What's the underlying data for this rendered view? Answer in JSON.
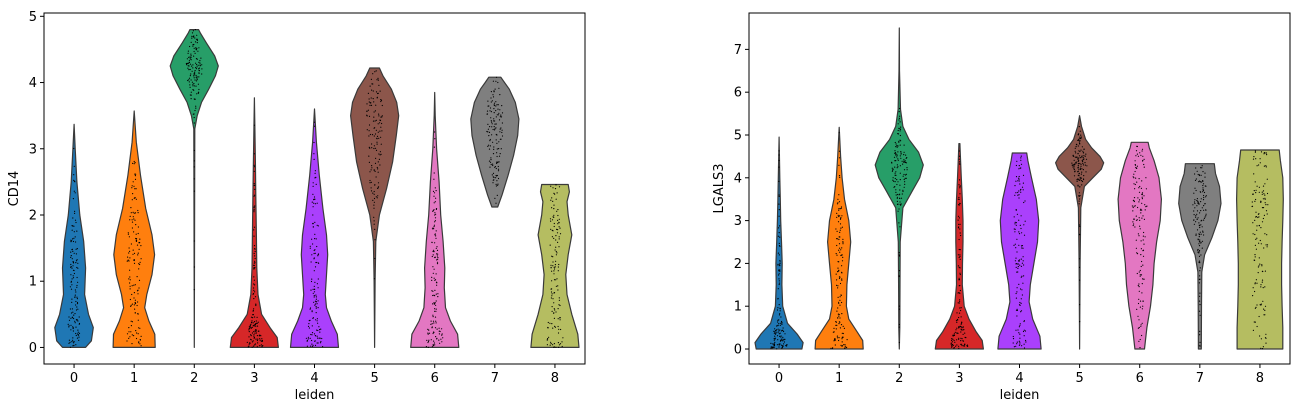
{
  "chart_data": [
    {
      "type": "violin",
      "xlabel": "leiden",
      "ylabel": "CD14",
      "ylim": [
        -0.25,
        5.05
      ],
      "yticks": [
        0,
        1,
        2,
        3,
        4,
        5
      ],
      "categories": [
        "0",
        "1",
        "2",
        "3",
        "4",
        "5",
        "6",
        "7",
        "8"
      ],
      "colors": [
        "#1f77b4",
        "#ff7f0e",
        "#279e68",
        "#d62728",
        "#aa40fc",
        "#8c564b",
        "#e377c2",
        "#7f7f7f",
        "#b5bd61"
      ],
      "violins": [
        {
          "min": 0.0,
          "max": 3.37,
          "max_width": 0.32,
          "profile": [
            [
              0.0,
              0.6
            ],
            [
              0.1,
              0.9
            ],
            [
              0.3,
              1.0
            ],
            [
              0.5,
              0.75
            ],
            [
              0.8,
              0.55
            ],
            [
              1.2,
              0.6
            ],
            [
              1.6,
              0.5
            ],
            [
              2.0,
              0.3
            ],
            [
              2.5,
              0.15
            ],
            [
              3.0,
              0.06
            ],
            [
              3.37,
              0.0
            ]
          ]
        },
        {
          "min": 0.0,
          "max": 3.57,
          "max_width": 0.35,
          "profile": [
            [
              0.0,
              1.0
            ],
            [
              0.2,
              0.98
            ],
            [
              0.4,
              0.7
            ],
            [
              0.6,
              0.5
            ],
            [
              0.8,
              0.6
            ],
            [
              1.1,
              0.85
            ],
            [
              1.4,
              0.97
            ],
            [
              1.7,
              0.85
            ],
            [
              2.1,
              0.55
            ],
            [
              2.6,
              0.3
            ],
            [
              3.1,
              0.1
            ],
            [
              3.57,
              0.0
            ]
          ]
        },
        {
          "min": 0.0,
          "max": 4.8,
          "max_width": 0.4,
          "profile": [
            [
              0.0,
              0.0
            ],
            [
              3.3,
              0.02
            ],
            [
              3.5,
              0.12
            ],
            [
              3.7,
              0.3
            ],
            [
              3.9,
              0.6
            ],
            [
              4.1,
              0.88
            ],
            [
              4.25,
              1.0
            ],
            [
              4.4,
              0.85
            ],
            [
              4.6,
              0.5
            ],
            [
              4.75,
              0.25
            ],
            [
              4.8,
              0.18
            ]
          ]
        },
        {
          "min": 0.0,
          "max": 3.77,
          "max_width": 0.4,
          "profile": [
            [
              0.0,
              1.0
            ],
            [
              0.15,
              0.95
            ],
            [
              0.3,
              0.65
            ],
            [
              0.5,
              0.3
            ],
            [
              0.8,
              0.15
            ],
            [
              1.2,
              0.1
            ],
            [
              1.8,
              0.08
            ],
            [
              2.3,
              0.06
            ],
            [
              2.8,
              0.04
            ],
            [
              3.3,
              0.02
            ],
            [
              3.77,
              0.0
            ]
          ]
        },
        {
          "min": 0.0,
          "max": 3.6,
          "max_width": 0.4,
          "profile": [
            [
              0.0,
              1.0
            ],
            [
              0.2,
              0.95
            ],
            [
              0.4,
              0.7
            ],
            [
              0.6,
              0.5
            ],
            [
              0.8,
              0.45
            ],
            [
              1.1,
              0.5
            ],
            [
              1.4,
              0.55
            ],
            [
              1.7,
              0.5
            ],
            [
              2.1,
              0.35
            ],
            [
              2.6,
              0.2
            ],
            [
              3.1,
              0.08
            ],
            [
              3.6,
              0.0
            ]
          ]
        },
        {
          "min": 0.0,
          "max": 4.22,
          "max_width": 0.4,
          "profile": [
            [
              0.0,
              0.0
            ],
            [
              1.0,
              0.02
            ],
            [
              1.6,
              0.05
            ],
            [
              2.0,
              0.2
            ],
            [
              2.4,
              0.5
            ],
            [
              2.8,
              0.75
            ],
            [
              3.2,
              0.9
            ],
            [
              3.5,
              1.0
            ],
            [
              3.7,
              0.92
            ],
            [
              3.9,
              0.7
            ],
            [
              4.1,
              0.35
            ],
            [
              4.22,
              0.2
            ]
          ]
        },
        {
          "min": 0.0,
          "max": 3.85,
          "max_width": 0.4,
          "profile": [
            [
              0.0,
              1.0
            ],
            [
              0.2,
              0.95
            ],
            [
              0.4,
              0.65
            ],
            [
              0.6,
              0.45
            ],
            [
              0.9,
              0.4
            ],
            [
              1.2,
              0.42
            ],
            [
              1.6,
              0.35
            ],
            [
              2.0,
              0.25
            ],
            [
              2.5,
              0.18
            ],
            [
              3.0,
              0.08
            ],
            [
              3.5,
              0.02
            ],
            [
              3.85,
              0.0
            ]
          ]
        },
        {
          "min": 2.12,
          "max": 4.08,
          "max_width": 0.4,
          "profile": [
            [
              2.12,
              0.12
            ],
            [
              2.3,
              0.3
            ],
            [
              2.6,
              0.55
            ],
            [
              2.9,
              0.78
            ],
            [
              3.2,
              0.95
            ],
            [
              3.45,
              1.0
            ],
            [
              3.7,
              0.85
            ],
            [
              3.9,
              0.6
            ],
            [
              4.0,
              0.4
            ],
            [
              4.08,
              0.25
            ]
          ]
        },
        {
          "min": 0.0,
          "max": 2.46,
          "max_width": 0.4,
          "profile": [
            [
              0.0,
              1.0
            ],
            [
              0.2,
              0.95
            ],
            [
              0.5,
              0.7
            ],
            [
              0.8,
              0.5
            ],
            [
              1.1,
              0.45
            ],
            [
              1.4,
              0.55
            ],
            [
              1.7,
              0.7
            ],
            [
              2.0,
              0.55
            ],
            [
              2.2,
              0.5
            ],
            [
              2.35,
              0.6
            ],
            [
              2.46,
              0.55
            ]
          ]
        }
      ]
    },
    {
      "type": "violin",
      "xlabel": "leiden",
      "ylabel": "LGALS3",
      "ylim": [
        -0.35,
        7.85
      ],
      "yticks": [
        0,
        1,
        2,
        3,
        4,
        5,
        6,
        7
      ],
      "categories": [
        "0",
        "1",
        "2",
        "3",
        "4",
        "5",
        "6",
        "7",
        "8"
      ],
      "colors": [
        "#1f77b4",
        "#ff7f0e",
        "#279e68",
        "#d62728",
        "#aa40fc",
        "#8c564b",
        "#e377c2",
        "#7f7f7f",
        "#b5bd61"
      ],
      "violins": [
        {
          "min": 0.0,
          "max": 4.95,
          "max_width": 0.4,
          "profile": [
            [
              0.0,
              0.95
            ],
            [
              0.15,
              1.0
            ],
            [
              0.35,
              0.75
            ],
            [
              0.6,
              0.35
            ],
            [
              1.0,
              0.15
            ],
            [
              1.5,
              0.12
            ],
            [
              2.0,
              0.13
            ],
            [
              2.5,
              0.1
            ],
            [
              3.0,
              0.07
            ],
            [
              3.5,
              0.05
            ],
            [
              4.0,
              0.03
            ],
            [
              4.95,
              0.0
            ]
          ]
        },
        {
          "min": 0.0,
          "max": 5.18,
          "max_width": 0.4,
          "profile": [
            [
              0.0,
              1.0
            ],
            [
              0.2,
              0.98
            ],
            [
              0.4,
              0.75
            ],
            [
              0.7,
              0.4
            ],
            [
              1.0,
              0.3
            ],
            [
              1.5,
              0.32
            ],
            [
              2.0,
              0.4
            ],
            [
              2.5,
              0.48
            ],
            [
              3.0,
              0.4
            ],
            [
              3.5,
              0.22
            ],
            [
              4.0,
              0.12
            ],
            [
              4.5,
              0.06
            ],
            [
              5.18,
              0.0
            ]
          ]
        },
        {
          "min": 0.0,
          "max": 7.5,
          "max_width": 0.4,
          "profile": [
            [
              0.0,
              0.0
            ],
            [
              0.5,
              0.02
            ],
            [
              1.5,
              0.03
            ],
            [
              2.5,
              0.04
            ],
            [
              3.3,
              0.15
            ],
            [
              3.7,
              0.55
            ],
            [
              4.0,
              0.85
            ],
            [
              4.3,
              1.0
            ],
            [
              4.6,
              0.8
            ],
            [
              4.9,
              0.4
            ],
            [
              5.2,
              0.15
            ],
            [
              5.6,
              0.05
            ],
            [
              6.5,
              0.01
            ],
            [
              7.5,
              0.0
            ]
          ]
        },
        {
          "min": 0.0,
          "max": 4.8,
          "max_width": 0.4,
          "profile": [
            [
              0.0,
              1.0
            ],
            [
              0.2,
              0.95
            ],
            [
              0.4,
              0.7
            ],
            [
              0.7,
              0.4
            ],
            [
              1.0,
              0.2
            ],
            [
              1.5,
              0.12
            ],
            [
              2.0,
              0.13
            ],
            [
              2.5,
              0.15
            ],
            [
              3.0,
              0.15
            ],
            [
              3.5,
              0.12
            ],
            [
              4.0,
              0.08
            ],
            [
              4.5,
              0.04
            ],
            [
              4.8,
              0.02
            ]
          ]
        },
        {
          "min": 0.0,
          "max": 4.58,
          "max_width": 0.4,
          "profile": [
            [
              0.0,
              0.9
            ],
            [
              0.3,
              0.85
            ],
            [
              0.7,
              0.55
            ],
            [
              1.1,
              0.4
            ],
            [
              1.5,
              0.45
            ],
            [
              2.0,
              0.6
            ],
            [
              2.5,
              0.75
            ],
            [
              3.0,
              0.8
            ],
            [
              3.5,
              0.7
            ],
            [
              4.0,
              0.5
            ],
            [
              4.4,
              0.35
            ],
            [
              4.58,
              0.3
            ]
          ]
        },
        {
          "min": 0.0,
          "max": 5.45,
          "max_width": 0.4,
          "profile": [
            [
              0.0,
              0.0
            ],
            [
              2.0,
              0.02
            ],
            [
              3.3,
              0.05
            ],
            [
              3.8,
              0.2
            ],
            [
              4.0,
              0.55
            ],
            [
              4.2,
              0.9
            ],
            [
              4.35,
              1.0
            ],
            [
              4.5,
              0.85
            ],
            [
              4.7,
              0.5
            ],
            [
              4.9,
              0.25
            ],
            [
              5.2,
              0.08
            ],
            [
              5.45,
              0.0
            ]
          ]
        },
        {
          "min": 0.0,
          "max": 4.83,
          "max_width": 0.4,
          "profile": [
            [
              0.0,
              0.2
            ],
            [
              0.5,
              0.3
            ],
            [
              1.0,
              0.45
            ],
            [
              1.5,
              0.55
            ],
            [
              2.0,
              0.6
            ],
            [
              2.5,
              0.7
            ],
            [
              3.0,
              0.85
            ],
            [
              3.5,
              0.9
            ],
            [
              4.0,
              0.8
            ],
            [
              4.4,
              0.6
            ],
            [
              4.7,
              0.4
            ],
            [
              4.83,
              0.35
            ]
          ]
        },
        {
          "min": 0.0,
          "max": 4.33,
          "max_width": 0.4,
          "profile": [
            [
              0.0,
              0.06
            ],
            [
              1.0,
              0.07
            ],
            [
              1.8,
              0.08
            ],
            [
              2.2,
              0.2
            ],
            [
              2.6,
              0.5
            ],
            [
              3.0,
              0.75
            ],
            [
              3.4,
              0.88
            ],
            [
              3.8,
              0.82
            ],
            [
              4.1,
              0.65
            ],
            [
              4.33,
              0.6
            ]
          ]
        },
        {
          "min": 0.0,
          "max": 4.65,
          "max_width": 0.4,
          "profile": [
            [
              0.0,
              0.95
            ],
            [
              0.5,
              0.95
            ],
            [
              1.0,
              0.92
            ],
            [
              1.5,
              0.9
            ],
            [
              2.0,
              0.9
            ],
            [
              2.5,
              0.92
            ],
            [
              3.0,
              0.95
            ],
            [
              3.5,
              0.97
            ],
            [
              4.0,
              0.95
            ],
            [
              4.4,
              0.85
            ],
            [
              4.65,
              0.8
            ]
          ]
        }
      ]
    }
  ]
}
